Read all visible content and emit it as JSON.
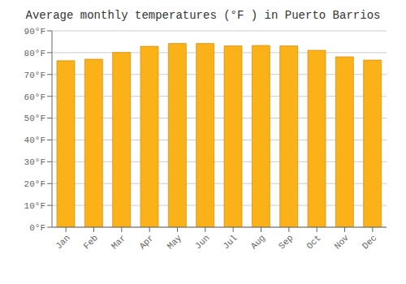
{
  "chart_data": {
    "type": "bar",
    "title": "Average monthly temperatures (°F ) in Puerto Barrios",
    "categories": [
      "Jan",
      "Feb",
      "Mar",
      "Apr",
      "May",
      "Jun",
      "Jul",
      "Aug",
      "Sep",
      "Oct",
      "Nov",
      "Dec"
    ],
    "values": [
      76.3,
      77.0,
      80.1,
      82.9,
      84.2,
      84.2,
      83.1,
      83.3,
      83.1,
      81.1,
      78.1,
      76.6
    ],
    "color": "#FBB118",
    "ylim": [
      0,
      90
    ],
    "yticks": [
      {
        "value": 0,
        "label": "0°F"
      },
      {
        "value": 10,
        "label": "10°F"
      },
      {
        "value": 20,
        "label": "20°F"
      },
      {
        "value": 30,
        "label": "30°F"
      },
      {
        "value": 40,
        "label": "40°F"
      },
      {
        "value": 50,
        "label": "50°F"
      },
      {
        "value": 60,
        "label": "60°F"
      },
      {
        "value": 70,
        "label": "70°F"
      },
      {
        "value": 80,
        "label": "80°F"
      },
      {
        "value": 90,
        "label": "90°F"
      }
    ],
    "grid": true
  }
}
